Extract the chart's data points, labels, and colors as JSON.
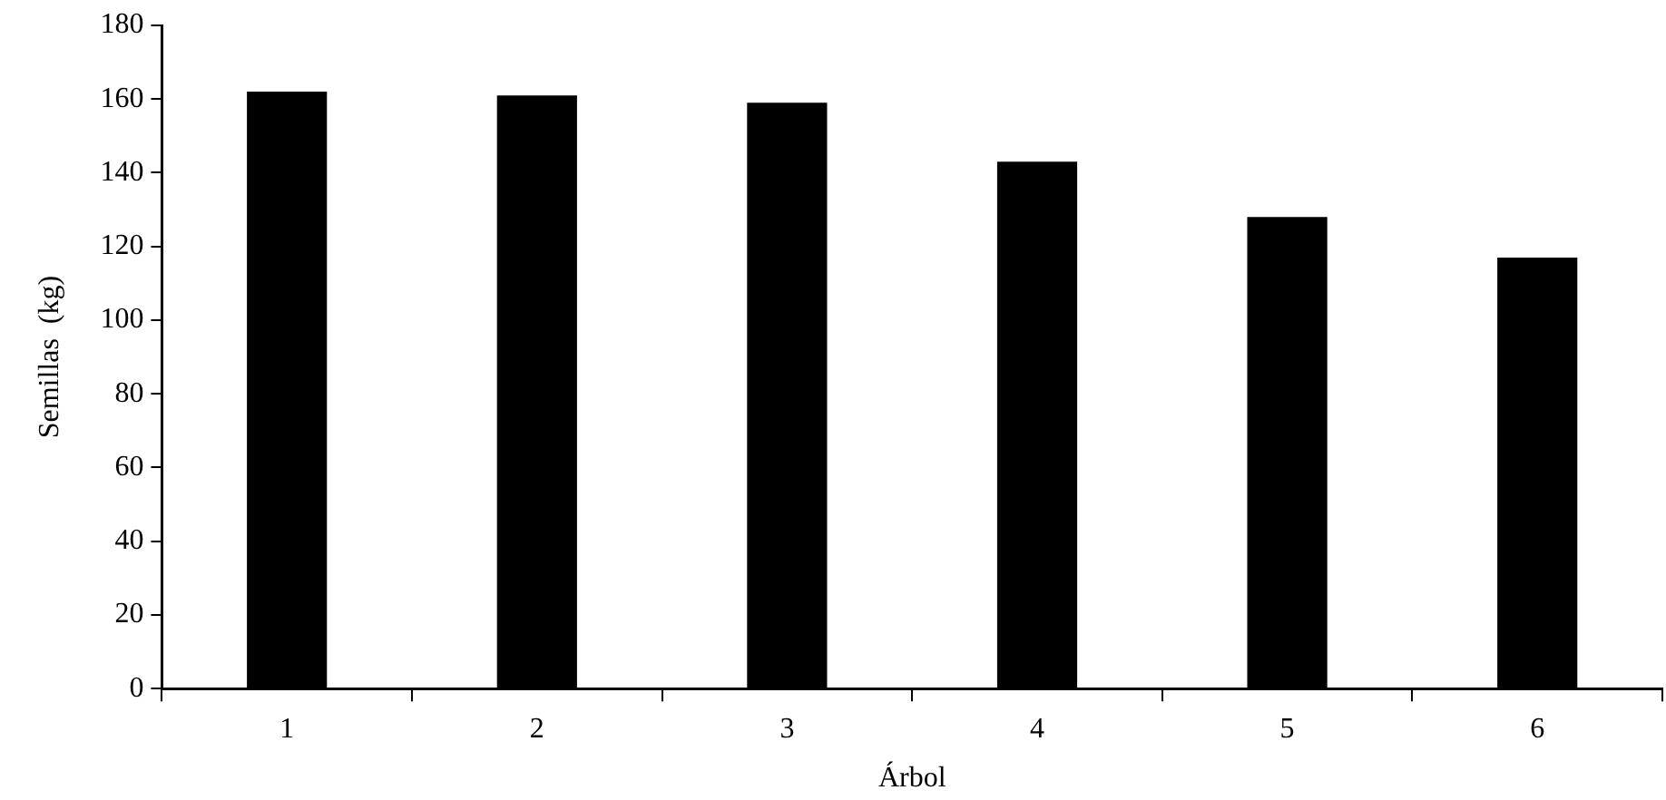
{
  "chart_data": {
    "type": "bar",
    "xlabel": "Árbol",
    "ylabel": "Semillas  (kg)",
    "categories": [
      "1",
      "2",
      "3",
      "4",
      "5",
      "6"
    ],
    "values": [
      162,
      161,
      159,
      143,
      128,
      117
    ],
    "color": "#000000",
    "ylim": [
      0,
      180
    ],
    "yticks": [
      0,
      20,
      40,
      60,
      80,
      100,
      120,
      140,
      160,
      180
    ],
    "grid": false,
    "legend": false
  }
}
